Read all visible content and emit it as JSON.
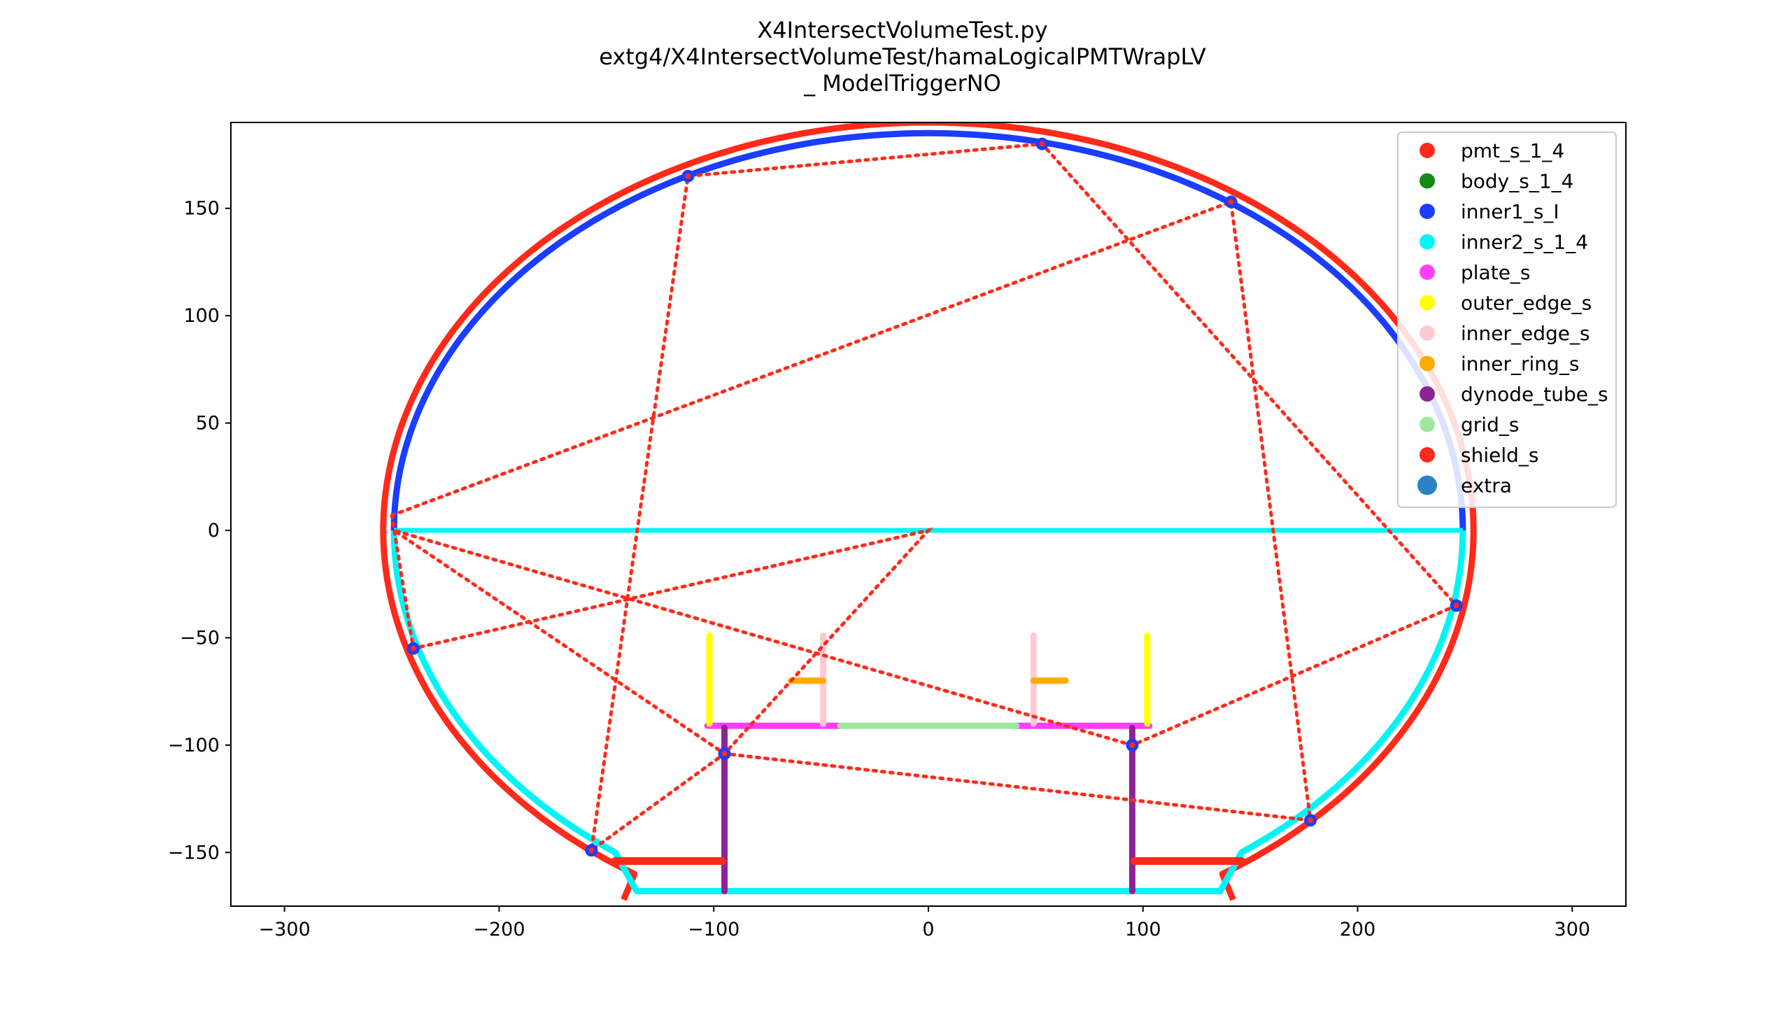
{
  "chart_data": {
    "type": "scatter",
    "title": [
      "X4IntersectVolumeTest.py",
      "extg4/X4IntersectVolumeTest/hamaLogicalPMTWrapLV",
      "_ ModelTriggerNO"
    ],
    "xlabel": "",
    "ylabel": "",
    "xlim": [
      -325,
      325
    ],
    "ylim": [
      -175,
      190
    ],
    "x_ticks": [
      -300,
      -200,
      -100,
      0,
      100,
      200,
      300
    ],
    "y_ticks": [
      -150,
      -100,
      -50,
      0,
      50,
      100,
      150
    ],
    "x_tick_labels": [
      "−300",
      "−200",
      "−100",
      "0",
      "100",
      "200",
      "300"
    ],
    "y_tick_labels": [
      "−150",
      "−100",
      "−50",
      "0",
      "50",
      "100",
      "150"
    ],
    "grid": false,
    "legend_position": "top-right",
    "legend": [
      {
        "label": "pmt_s_1_4",
        "color": "#ff2a1a"
      },
      {
        "label": "body_s_1_4",
        "color": "#138a13"
      },
      {
        "label": "inner1_s_I",
        "color": "#1a3dff"
      },
      {
        "label": "inner2_s_1_4",
        "color": "#00f5f5"
      },
      {
        "label": "plate_s",
        "color": "#ff3dff"
      },
      {
        "label": "outer_edge_s",
        "color": "#ffff00"
      },
      {
        "label": "inner_edge_s",
        "color": "#ffc9d4"
      },
      {
        "label": "inner_ring_s",
        "color": "#ffab00"
      },
      {
        "label": "dynode_tube_s",
        "color": "#8b2495"
      },
      {
        "label": "grid_s",
        "color": "#9de89d"
      },
      {
        "label": "shield_s",
        "color": "#ff2a1a"
      },
      {
        "label": "extra",
        "color": "#2b83c4"
      }
    ],
    "shapes": {
      "pmt_outer": {
        "a": 254,
        "b": 190,
        "bottom_y": -172,
        "neck_half_width": 142,
        "neck_top_y": -160,
        "color": "#ff2a1a"
      },
      "inner1_upper": {
        "a": 249,
        "b": 185,
        "y_range": [
          0,
          185
        ],
        "color": "#1a3dff"
      },
      "inner2_lower": {
        "a": 249,
        "b": 185,
        "y_range": [
          -168,
          0
        ],
        "bottom_half_width": 136,
        "bottom_y": -168,
        "color": "#00f5f5"
      },
      "equator": {
        "x_range": [
          -249,
          249
        ],
        "y": 0,
        "color": "#00f5f5"
      },
      "plate_segments": [
        {
          "x_range": [
            -103,
            -41
          ],
          "y": -91,
          "color": "#ff3dff"
        },
        {
          "x_range": [
            41,
            103
          ],
          "y": -91,
          "color": "#ff3dff"
        }
      ],
      "grid_segment": {
        "x_range": [
          -41,
          41
        ],
        "y": -91,
        "color": "#9de89d"
      },
      "outer_edge_segments": [
        {
          "x": -102,
          "y_range": [
            -90,
            -49
          ],
          "color": "#ffff00"
        },
        {
          "x": 102,
          "y_range": [
            -90,
            -49
          ],
          "color": "#ffff00"
        }
      ],
      "inner_edge_segments": [
        {
          "x": -49,
          "y_range": [
            -90,
            -49
          ],
          "color": "#ffc9d4"
        },
        {
          "x": 49,
          "y_range": [
            -90,
            -49
          ],
          "color": "#ffc9d4"
        }
      ],
      "inner_ring_segments": [
        {
          "x_range": [
            -64,
            -49
          ],
          "y": -70,
          "color": "#ffab00"
        },
        {
          "x_range": [
            49,
            64
          ],
          "y": -70,
          "color": "#ffab00"
        }
      ],
      "dynode_tube_segments": [
        {
          "x": -95,
          "y_range": [
            -168,
            -92
          ],
          "color": "#8b2495"
        },
        {
          "x": 95,
          "y_range": [
            -168,
            -92
          ],
          "color": "#8b2495"
        }
      ],
      "shield_segments": [
        {
          "x_range": [
            -146,
            -96
          ],
          "y": -154,
          "color": "#ff2a1a"
        },
        {
          "x_range": [
            96,
            146
          ],
          "y": -154,
          "color": "#ff2a1a"
        }
      ]
    },
    "ray_path": {
      "color": "#ff2a1a",
      "points": [
        [
          -250,
          7
        ],
        [
          141,
          153
        ],
        [
          178,
          -135
        ],
        [
          -95,
          -104
        ],
        [
          -249,
          0
        ],
        [
          95,
          -100
        ],
        [
          246,
          -35
        ],
        [
          53,
          180
        ],
        [
          -112,
          165
        ],
        [
          -157,
          -149
        ],
        [
          -95,
          -104
        ],
        [
          0,
          0
        ],
        [
          -240,
          -55
        ],
        [
          -250,
          7
        ]
      ]
    },
    "intersection_points": {
      "color": "#1a3dff",
      "points": [
        [
          -112,
          165
        ],
        [
          53,
          180
        ],
        [
          141,
          153
        ],
        [
          -240,
          -55
        ],
        [
          246,
          -35
        ],
        [
          -95,
          -104
        ],
        [
          95,
          -100
        ],
        [
          -157,
          -149
        ],
        [
          178,
          -135
        ]
      ]
    }
  }
}
